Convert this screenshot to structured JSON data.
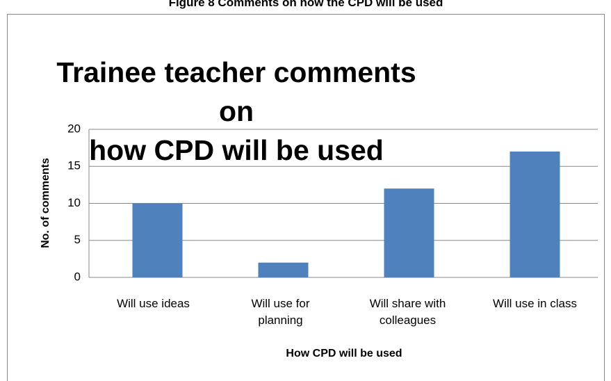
{
  "caption": "Figure 8 Comments on how the CPD will be used",
  "chart_data": {
    "type": "bar",
    "title": "Trainee teacher comments on\nhow CPD will be used",
    "categories": [
      "Will use ideas",
      "Will use for\nplanning",
      "Will share with\ncolleagues",
      "Will use in class"
    ],
    "values": [
      10,
      2,
      12,
      17
    ],
    "color": "#4f81bd",
    "ylim": [
      0,
      20
    ],
    "yticks": [
      0,
      5,
      10,
      15,
      20
    ],
    "grid": true,
    "x_label": "How CPD will be used",
    "y_label": "No. of comments"
  }
}
